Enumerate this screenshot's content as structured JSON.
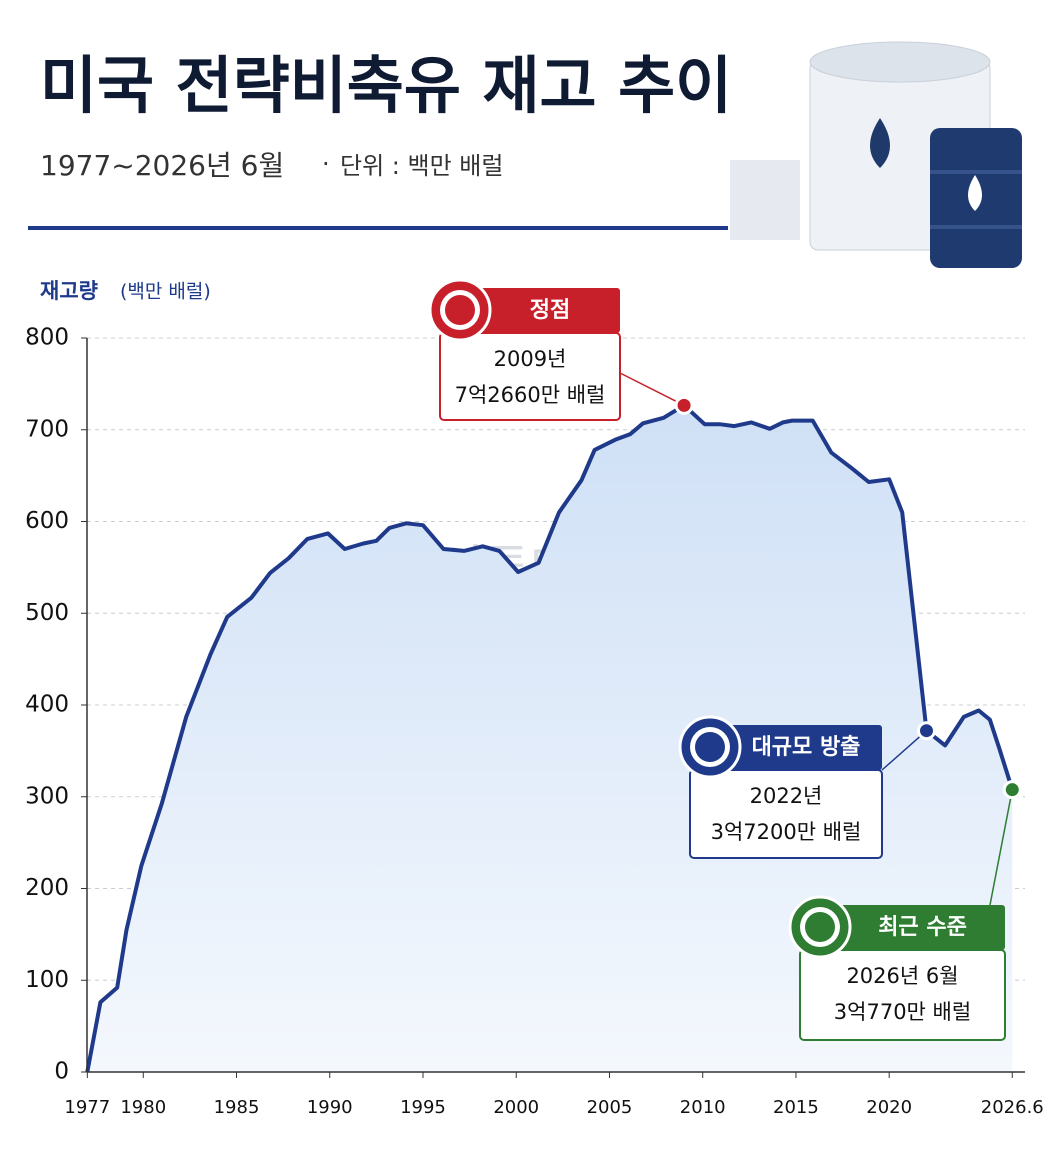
{
  "chart_data": {
    "type": "area",
    "title": "미국 전략비축유 재고 추이",
    "subtitle": "1977~2026년 6월",
    "unit_note": "단위 : 백만 배럴",
    "y_label": "재고량",
    "y_unit": "(백만 배럴)",
    "watermark": "이투데이",
    "color": "#1f3a8a",
    "x": [
      1977,
      1977.7,
      1978.6,
      1979.1,
      1979.9,
      1981.0,
      1982.3,
      1983.6,
      1984.5,
      1985.8,
      1986.8,
      1987.8,
      1988.8,
      1989.9,
      1990.8,
      1991.8,
      1992.5,
      1993.2,
      1994.1,
      1995.0,
      1996.1,
      1997.2,
      1998.2,
      1999.1,
      2000.1,
      2001.2,
      2002.3,
      2003.5,
      2004.2,
      2005.3,
      2006.1,
      2006.8,
      2007.9,
      2009,
      2010.1,
      2010.9,
      2011.7,
      2012.6,
      2013.6,
      2014.3,
      2014.8,
      2015.9,
      2016.9,
      2018.0,
      2018.9,
      2020.0,
      2020.7,
      2022,
      2023.0,
      2024.0,
      2024.8,
      2025.4,
      2025.9,
      2026.6
    ],
    "values": [
      0,
      76,
      92,
      155,
      225,
      293,
      387,
      455,
      496,
      517,
      544,
      560,
      581,
      587,
      570,
      576,
      579,
      593,
      598,
      596,
      570,
      568,
      573,
      568,
      545,
      555,
      610,
      645,
      678,
      689,
      695,
      707,
      713,
      726.6,
      706,
      706,
      704,
      708,
      701,
      708,
      710,
      710,
      675,
      658,
      643,
      646,
      610,
      372,
      356,
      387,
      394,
      384,
      353,
      307.7
    ],
    "xlim": [
      1976.5,
      2026.8
    ],
    "ylim": [
      0,
      800
    ],
    "xticks": [
      1977,
      1980,
      1985,
      1990,
      1995,
      2000,
      2005,
      2010,
      2015,
      2020,
      2026.6
    ],
    "yticks": [
      0,
      100,
      200,
      300,
      400,
      500,
      600,
      700,
      800
    ],
    "grid": true,
    "annotations": [
      {
        "tag": "정점",
        "line1": "2009년",
        "line2": "7억2660만 배럴",
        "color": "#c8202a"
      },
      {
        "tag": "대규모 방출",
        "line1": "2022년",
        "line2": "3억7200만 배럴",
        "color": "#1f3a8a"
      },
      {
        "tag": "최근 수준",
        "line1": "2026년 6월",
        "line2": "3억770만 배럴",
        "color": "#2e7d32"
      }
    ]
  }
}
